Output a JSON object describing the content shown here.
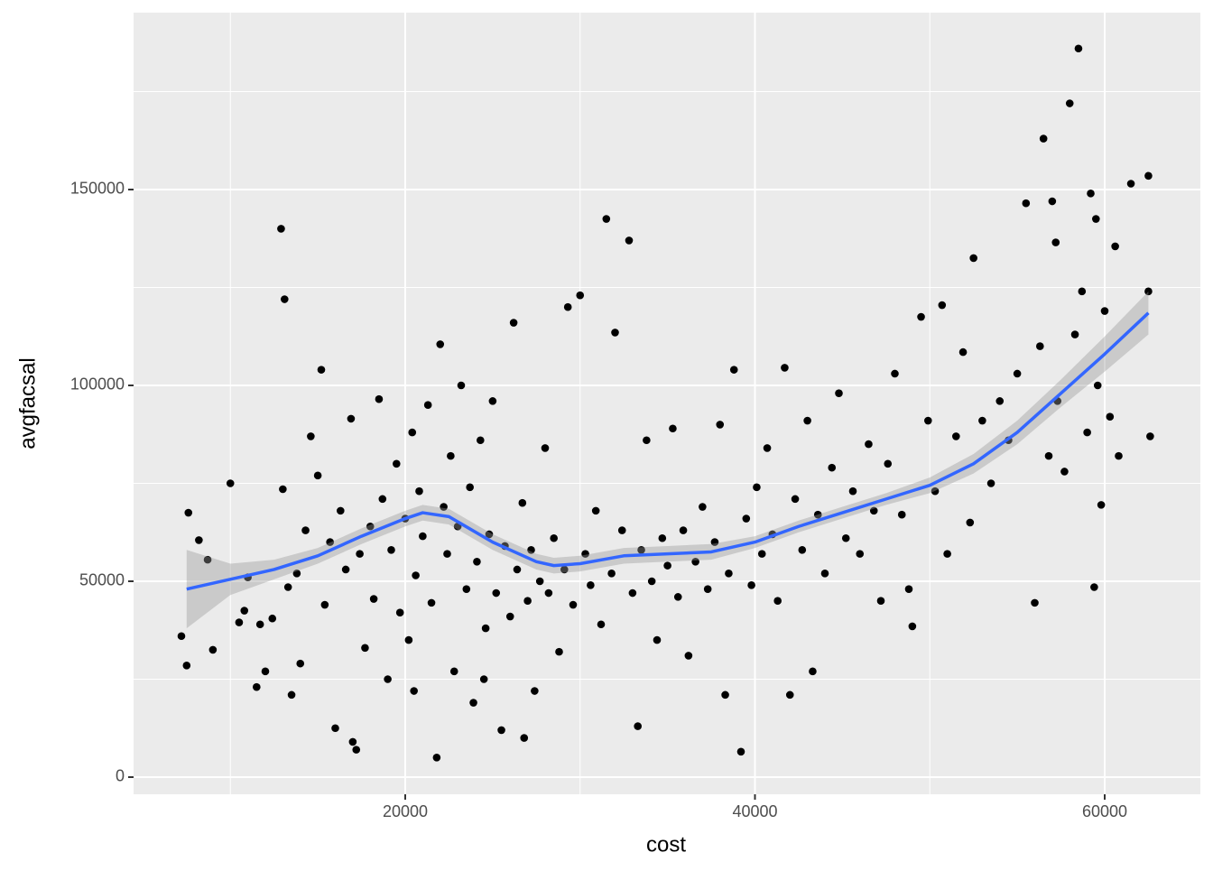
{
  "chart_data": {
    "type": "scatter",
    "xlabel": "cost",
    "ylabel": "avgfacsal",
    "xlim": [
      4465,
      65471
    ],
    "ylim": [
      -4378,
      195161
    ],
    "xticks": [
      20000,
      40000,
      60000
    ],
    "yticks": [
      0,
      50000,
      100000,
      150000
    ],
    "xminor": [
      10000,
      30000,
      50000
    ],
    "yminor": [
      25000,
      75000,
      125000,
      175000
    ],
    "grid": true,
    "color": "#000000",
    "x": [
      7200,
      7500,
      7600,
      8200,
      8700,
      9000,
      10000,
      10500,
      10800,
      11000,
      11500,
      11700,
      12000,
      12400,
      12900,
      13100,
      13000,
      13300,
      13500,
      13800,
      14000,
      14300,
      14600,
      15000,
      15200,
      15400,
      15700,
      16000,
      16300,
      16600,
      16900,
      17200,
      17400,
      17700,
      18000,
      18200,
      18500,
      18700,
      19000,
      19200,
      19500,
      19700,
      20000,
      20200,
      20400,
      20600,
      20800,
      21000,
      21300,
      21500,
      21800,
      22000,
      22200,
      22400,
      22600,
      22800,
      23000,
      23200,
      23500,
      23700,
      23900,
      24100,
      24300,
      24600,
      24800,
      25000,
      25200,
      25500,
      25700,
      26000,
      26200,
      26400,
      26700,
      27000,
      27200,
      27400,
      27700,
      28000,
      28200,
      28500,
      28800,
      29100,
      29300,
      29600,
      30000,
      30300,
      30600,
      30900,
      31200,
      31500,
      31800,
      32000,
      32400,
      32800,
      33000,
      33300,
      33500,
      33800,
      34100,
      34400,
      34700,
      35000,
      35300,
      35600,
      35900,
      36200,
      36600,
      37000,
      37300,
      37700,
      38000,
      38300,
      38500,
      38800,
      39200,
      39500,
      39800,
      40100,
      40400,
      40700,
      41000,
      41300,
      41700,
      42000,
      42300,
      42700,
      43000,
      43300,
      43600,
      44000,
      44400,
      44800,
      45200,
      45600,
      46000,
      46500,
      46800,
      47200,
      47600,
      48000,
      48400,
      48800,
      49000,
      49500,
      49900,
      50300,
      50700,
      51000,
      51500,
      51900,
      52300,
      52500,
      53000,
      53500,
      54000,
      54500,
      55000,
      55500,
      56000,
      56300,
      56500,
      56800,
      57000,
      57300,
      57700,
      58000,
      58300,
      58500,
      58700,
      59000,
      59200,
      59400,
      59600,
      59800,
      60000,
      60300,
      60600,
      60800,
      61500,
      62500,
      62600,
      62500,
      59500,
      57200,
      17000,
      20500,
      24500,
      26800
    ],
    "values": [
      36000,
      28500,
      67500,
      60500,
      55500,
      32500,
      75000,
      39500,
      42500,
      51000,
      23000,
      39000,
      27000,
      40500,
      140000,
      122000,
      73500,
      48500,
      21000,
      52000,
      29000,
      63000,
      87000,
      77000,
      104000,
      44000,
      60000,
      12500,
      68000,
      53000,
      91500,
      7000,
      57000,
      33000,
      64000,
      45500,
      96500,
      71000,
      25000,
      58000,
      80000,
      42000,
      66000,
      35000,
      88000,
      51500,
      73000,
      61500,
      95000,
      44500,
      5000,
      110500,
      69000,
      57000,
      82000,
      27000,
      64000,
      100000,
      48000,
      74000,
      19000,
      55000,
      86000,
      38000,
      62000,
      96000,
      47000,
      12000,
      59000,
      41000,
      116000,
      53000,
      70000,
      45000,
      58000,
      22000,
      50000,
      84000,
      47000,
      61000,
      32000,
      53000,
      120000,
      44000,
      123000,
      57000,
      49000,
      68000,
      39000,
      142500,
      52000,
      113500,
      63000,
      137000,
      47000,
      13000,
      58000,
      86000,
      50000,
      35000,
      61000,
      54000,
      89000,
      46000,
      63000,
      31000,
      55000,
      69000,
      48000,
      60000,
      90000,
      21000,
      52000,
      104000,
      6500,
      66000,
      49000,
      74000,
      57000,
      84000,
      62000,
      45000,
      104500,
      21000,
      71000,
      58000,
      91000,
      27000,
      67000,
      52000,
      79000,
      98000,
      61000,
      73000,
      57000,
      85000,
      68000,
      45000,
      80000,
      103000,
      67000,
      48000,
      38500,
      117500,
      91000,
      73000,
      120500,
      57000,
      87000,
      108500,
      65000,
      132500,
      91000,
      75000,
      96000,
      86000,
      103000,
      146500,
      44500,
      110000,
      163000,
      82000,
      147000,
      96000,
      78000,
      172000,
      113000,
      186000,
      124000,
      88000,
      149000,
      48500,
      100000,
      69500,
      119000,
      92000,
      135500,
      82000,
      151500,
      153500,
      87000,
      124000,
      142500,
      136500,
      9000,
      22000,
      25000,
      10000
    ],
    "smooth": {
      "color": "#3366ff",
      "band_color": "#999999",
      "x": [
        7500,
        10000,
        12500,
        15000,
        17500,
        20000,
        21000,
        22500,
        25000,
        27500,
        28500,
        30000,
        32500,
        35000,
        37500,
        40000,
        42500,
        45000,
        47500,
        50000,
        52500,
        55000,
        57500,
        60000,
        62500
      ],
      "values": [
        48000,
        50500,
        53000,
        56500,
        61500,
        66000,
        67500,
        66500,
        60000,
        55000,
        54000,
        54500,
        56500,
        57000,
        57500,
        60000,
        64000,
        67500,
        71000,
        74500,
        80000,
        88000,
        98000,
        108000,
        118500
      ],
      "lower": [
        38000,
        46500,
        50500,
        54500,
        59500,
        64000,
        65500,
        64500,
        58000,
        53000,
        52000,
        52500,
        54500,
        55000,
        55500,
        58500,
        62500,
        66000,
        69500,
        72500,
        77500,
        85000,
        94500,
        103500,
        113000
      ],
      "upper": [
        58000,
        54500,
        55500,
        58500,
        63500,
        68000,
        69500,
        68500,
        62000,
        57000,
        56000,
        56500,
        58500,
        59000,
        59500,
        61500,
        65500,
        69000,
        72500,
        76500,
        82500,
        91000,
        101500,
        112500,
        124000
      ]
    }
  }
}
